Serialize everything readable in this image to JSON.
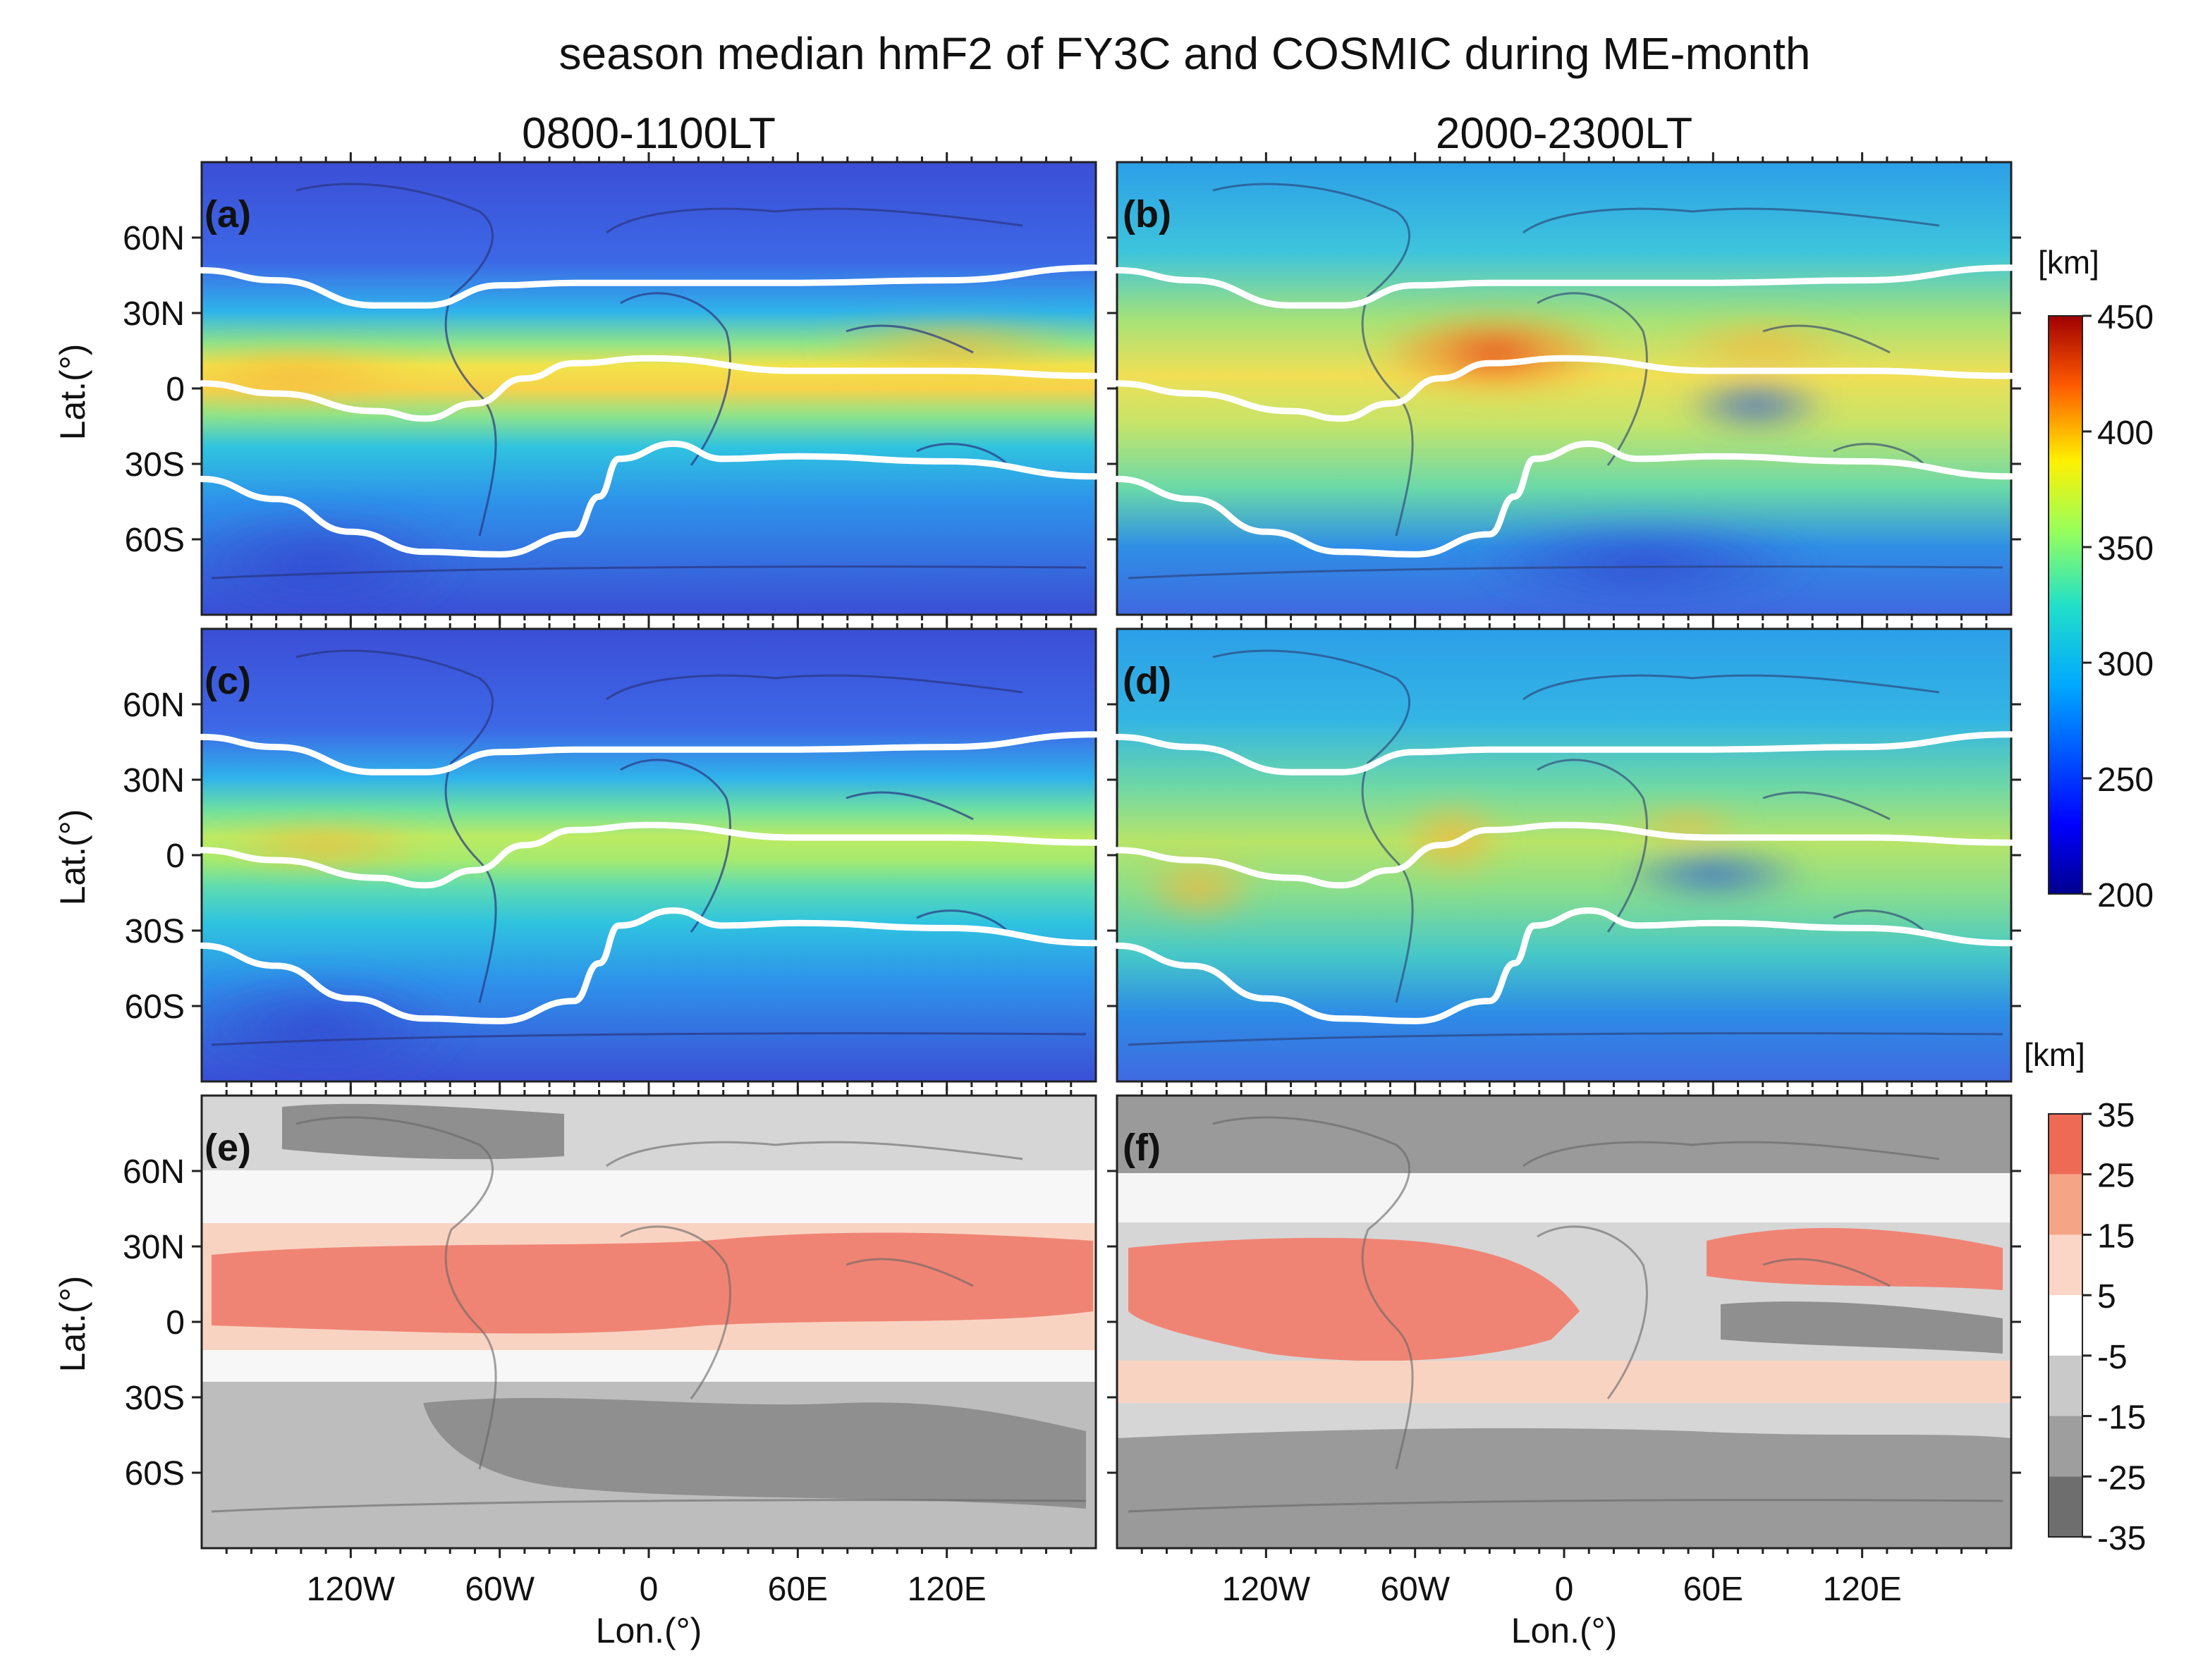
{
  "chart_data": {
    "type": "heatmap",
    "title": "season median hmF2 of FY3C and COSMIC during ME-month",
    "column_titles": [
      "0800-1100LT",
      "2000-2300LT"
    ],
    "xlabel": "Lon.(°)",
    "ylabel": "Lat.(°)",
    "x_ticks": [
      "120W",
      "60W",
      "0",
      "60E",
      "120E"
    ],
    "x_tick_values": [
      -120,
      -60,
      0,
      60,
      120
    ],
    "y_ticks": [
      "60N",
      "30N",
      "0",
      "30S",
      "60S"
    ],
    "y_tick_values": [
      60,
      30,
      0,
      -30,
      -60
    ],
    "xlim": [
      -180,
      180
    ],
    "ylim": [
      -90,
      90
    ],
    "panels": [
      {
        "label": "(a)",
        "local_time": "0800-1100LT",
        "field": "hmF2"
      },
      {
        "label": "(b)",
        "local_time": "2000-2300LT",
        "field": "hmF2"
      },
      {
        "label": "(c)",
        "local_time": "0800-1100LT",
        "field": "hmF2"
      },
      {
        "label": "(d)",
        "local_time": "2000-2300LT",
        "field": "hmF2"
      },
      {
        "label": "(e)",
        "local_time": "0800-1100LT",
        "field": "difference"
      },
      {
        "label": "(f)",
        "local_time": "2000-2300LT",
        "field": "difference"
      }
    ],
    "colorbar_hmF2": {
      "unit": "[km]",
      "ticks": [
        "450",
        "400",
        "350",
        "300",
        "250",
        "200"
      ],
      "tick_values": [
        450,
        400,
        350,
        300,
        250,
        200
      ],
      "range": [
        200,
        450
      ]
    },
    "colorbar_diff": {
      "unit": "[km]",
      "ticks": [
        "35",
        "25",
        "15",
        "5",
        "-5",
        "-15",
        "-25",
        "-35"
      ],
      "tick_values": [
        35,
        25,
        15,
        5,
        -5,
        -15,
        -25,
        -35
      ],
      "range": [
        -35,
        35
      ]
    },
    "magnetic_latitude_contours": {
      "color": "#ffffff",
      "lines": [
        {
          "name": "north",
          "lon": [
            -180,
            -150,
            -110,
            -90,
            -60,
            -30,
            0,
            60,
            120,
            180
          ],
          "lat": [
            47,
            43,
            33,
            33,
            41,
            42,
            42,
            42,
            43,
            48
          ]
        },
        {
          "name": "equator",
          "lon": [
            -180,
            -150,
            -110,
            -90,
            -70,
            -50,
            -30,
            0,
            60,
            120,
            180
          ],
          "lat": [
            2,
            -2,
            -9,
            -12,
            -6,
            4,
            10,
            12,
            7,
            7,
            5
          ]
        },
        {
          "name": "south",
          "lon": [
            -180,
            -150,
            -120,
            -90,
            -60,
            -30,
            -20,
            -12,
            10,
            30,
            60,
            120,
            180
          ],
          "lat": [
            -36,
            -44,
            -57,
            -65,
            -66,
            -58,
            -43,
            -28,
            -22,
            -28,
            -27,
            -29,
            -35
          ]
        }
      ]
    }
  }
}
